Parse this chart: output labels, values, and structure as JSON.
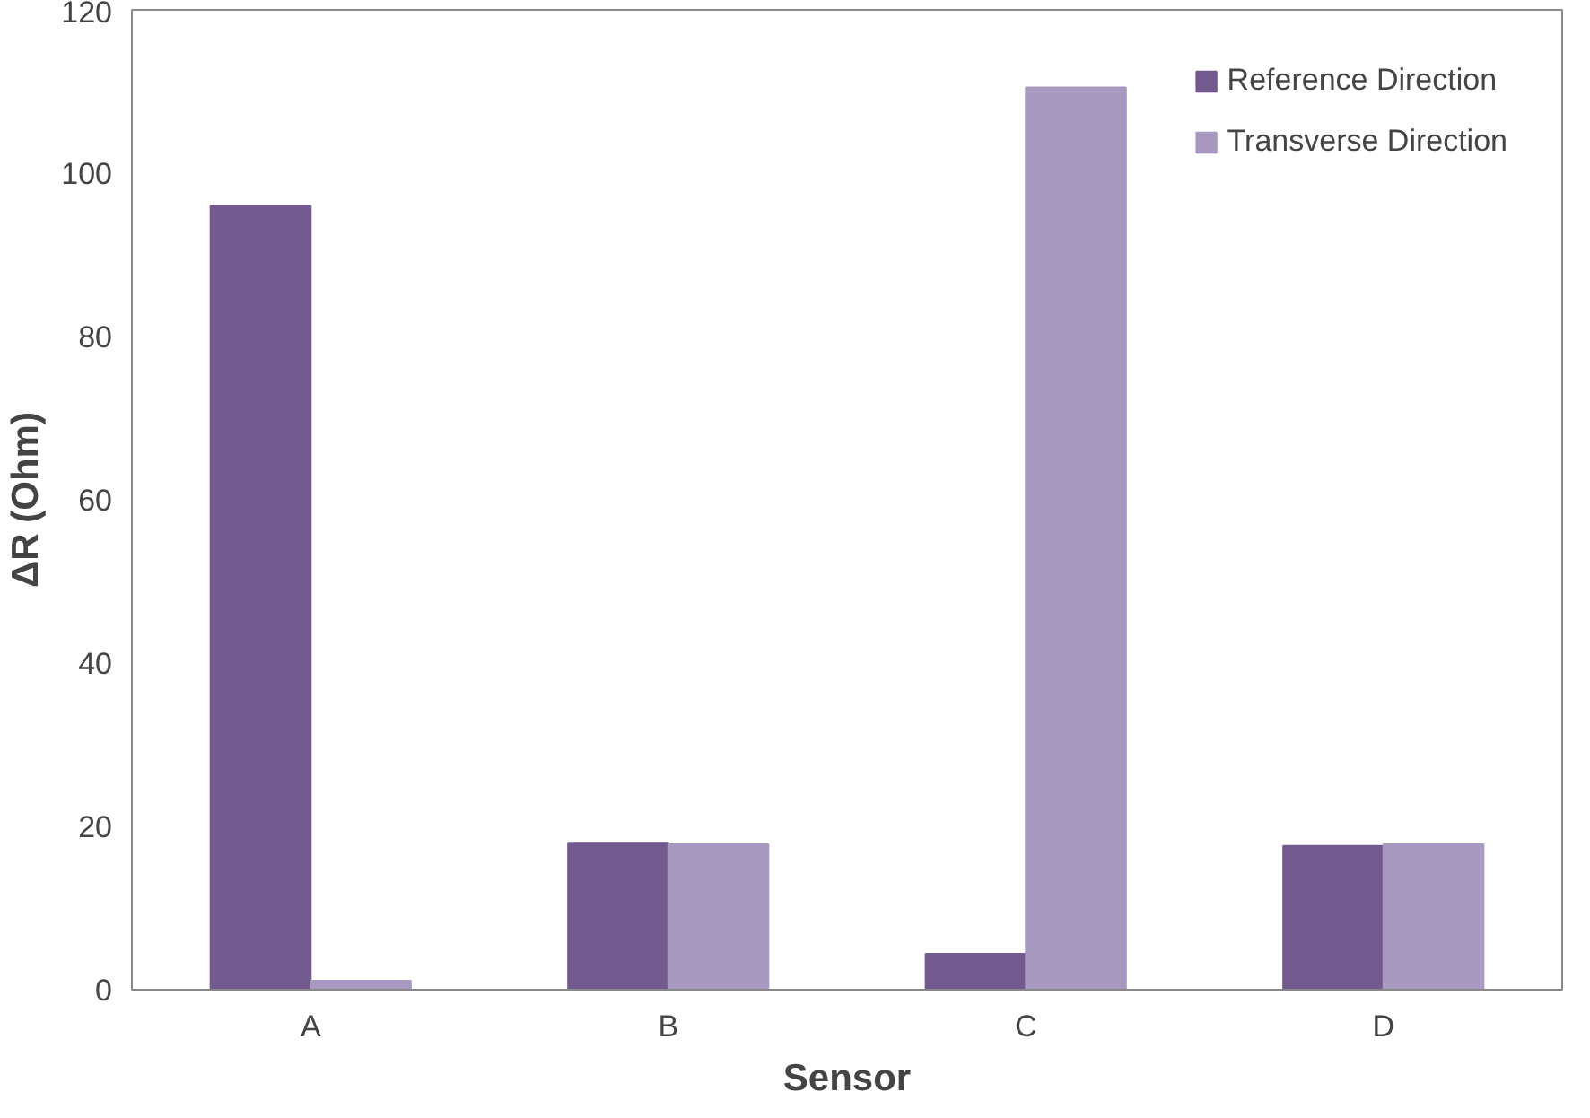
{
  "chart_data": {
    "type": "bar",
    "xlabel": "Sensor",
    "ylabel": "ΔR (Ohm)",
    "categories": [
      "A",
      "B",
      "C",
      "D"
    ],
    "series": [
      {
        "name": "Reference Direction",
        "color": "#725a8f",
        "values": [
          96,
          18,
          4.4,
          17.6
        ]
      },
      {
        "name": "Transverse Direction",
        "color": "#a899c0",
        "values": [
          1.1,
          17.8,
          110.5,
          17.8
        ]
      }
    ],
    "ylim": [
      0,
      120
    ],
    "yticks": [
      0,
      20,
      40,
      60,
      80,
      100,
      120
    ],
    "grid": false,
    "legend": "top right"
  }
}
